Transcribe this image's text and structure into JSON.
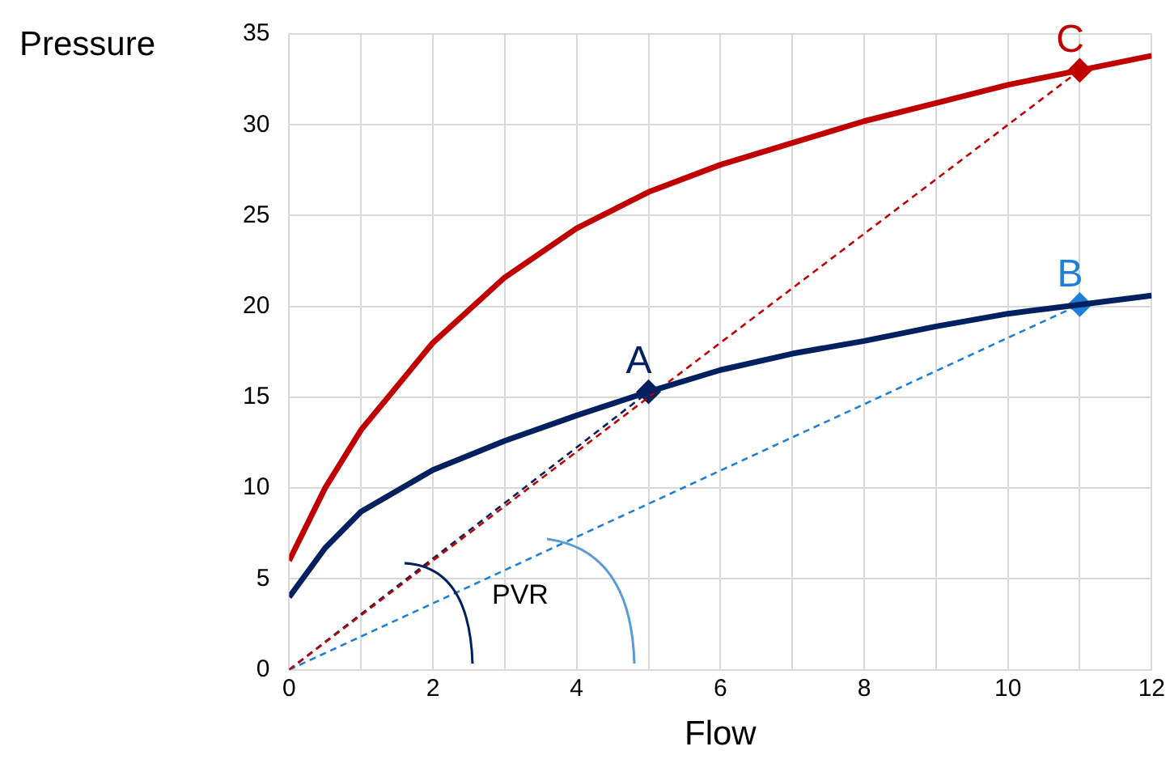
{
  "chart_data": {
    "type": "line",
    "xlabel": "Flow",
    "ylabel": "Pressure",
    "xlim": [
      0,
      12
    ],
    "ylim": [
      0,
      35
    ],
    "xticks": [
      0,
      {
        "value": 1,
        "label": null
      },
      2,
      {
        "value": 3,
        "label": null
      },
      4,
      {
        "value": 5,
        "label": null
      },
      6,
      {
        "value": 7,
        "label": null
      },
      8,
      {
        "value": 9,
        "label": null
      },
      10,
      {
        "value": 11,
        "label": null
      },
      12
    ],
    "yticks": [
      0,
      5,
      10,
      15,
      20,
      25,
      30,
      35
    ],
    "grid": true,
    "legend": false,
    "marker": "none",
    "line_style": "solid",
    "series": [
      {
        "color": "#c00000",
        "x": [
          0,
          0.5,
          1,
          2,
          3,
          4,
          5,
          6,
          7,
          8,
          9,
          10,
          11,
          12
        ],
        "values": [
          6,
          10,
          13.2,
          18,
          21.6,
          24.3,
          26.3,
          27.8,
          29,
          30.2,
          31.2,
          32.2,
          33,
          33.8
        ]
      },
      {
        "color": "#002060",
        "x": [
          0,
          0.5,
          1,
          2,
          3,
          4,
          5,
          6,
          7,
          8,
          9,
          10,
          11,
          12
        ],
        "values": [
          4,
          6.7,
          8.7,
          11,
          12.6,
          14,
          15.3,
          16.5,
          17.4,
          18.1,
          18.9,
          19.6,
          20.1,
          20.6
        ]
      },
      {
        "color": "#c00000",
        "line_style": "dashed",
        "x": [
          0,
          11
        ],
        "values": [
          0,
          33
        ]
      },
      {
        "color": "#002060",
        "line_style": "dashed",
        "x": [
          0,
          5
        ],
        "values": [
          0,
          15.3
        ]
      },
      {
        "color": "#1f7fd8",
        "line_style": "dashed",
        "x": [
          0,
          11
        ],
        "values": [
          0,
          20.1
        ]
      },
      {
        "type": "scatter",
        "name": "A",
        "color": "#002060",
        "marker": "diamond",
        "x": [
          5
        ],
        "values": [
          15.3
        ]
      },
      {
        "type": "scatter",
        "name": "B",
        "color": "#1f7fd8",
        "marker": "diamond",
        "x": [
          11
        ],
        "values": [
          20.1
        ]
      },
      {
        "type": "scatter",
        "name": "C",
        "color": "#c00000",
        "marker": "diamond",
        "x": [
          11
        ],
        "values": [
          33
        ]
      }
    ],
    "annotations": [
      "PVR"
    ]
  }
}
